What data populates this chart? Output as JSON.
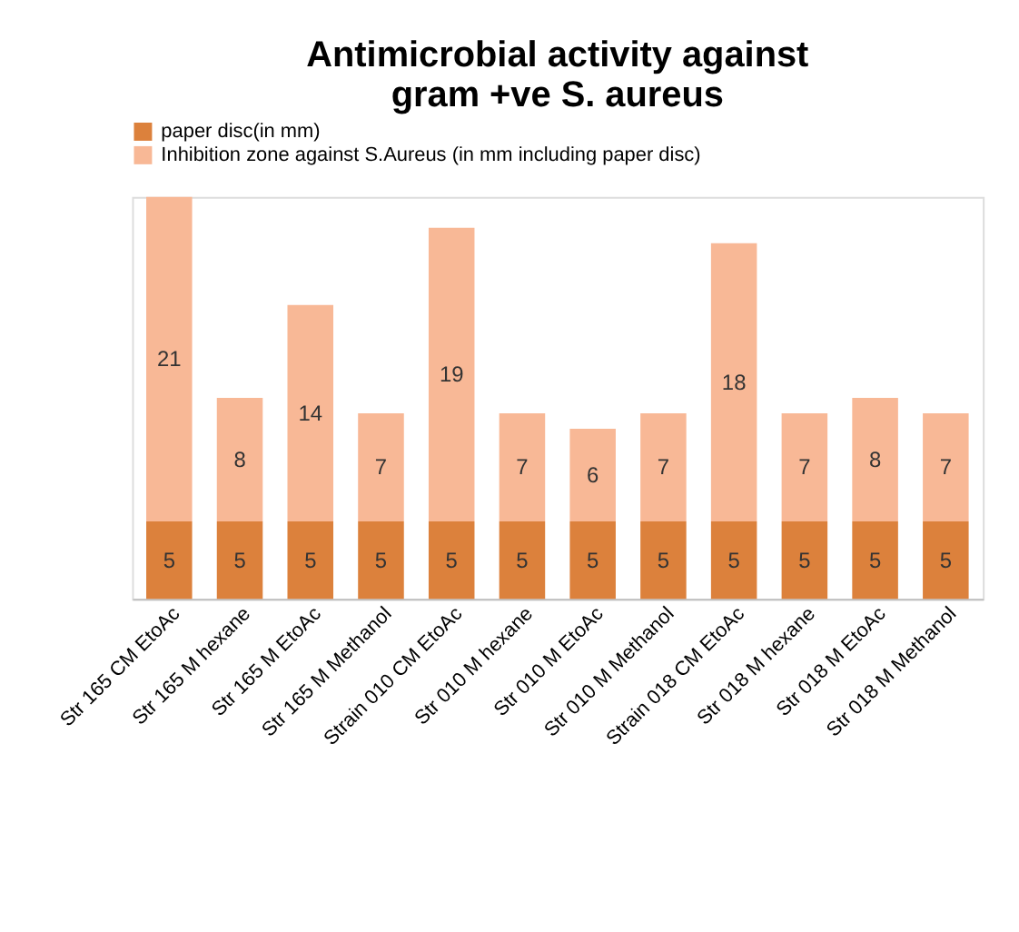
{
  "chart_data": {
    "type": "bar",
    "title": "Antimicrobial activity against\ngram +ve S. aureus",
    "stacked": true,
    "data_labels": true,
    "legend": "top left",
    "grid": false,
    "categories": [
      "Str 165 CM EtoAc",
      "Str 165 M hexane",
      "Str 165 M EtoAc",
      "Str 165 M Methanol",
      "Strain 010 CM EtoAc",
      "Str 010 M hexane",
      "Str 010 M EtoAc",
      "Str 010 M Methanol",
      "Strain 018 CM EtoAc",
      "Str 018 M hexane",
      "Str 018 M EtoAc",
      "Str 018 M Methanol"
    ],
    "series": [
      {
        "name": "paper disc(in mm)",
        "color": "#dc813c",
        "values": [
          5,
          5,
          5,
          5,
          5,
          5,
          5,
          5,
          5,
          5,
          5,
          5
        ]
      },
      {
        "name": "Inhibition zone against S.Aureus (in mm including paper disc)",
        "color": "#f8b896",
        "values": [
          21,
          8,
          14,
          7,
          19,
          7,
          6,
          7,
          18,
          7,
          8,
          7
        ]
      }
    ]
  }
}
